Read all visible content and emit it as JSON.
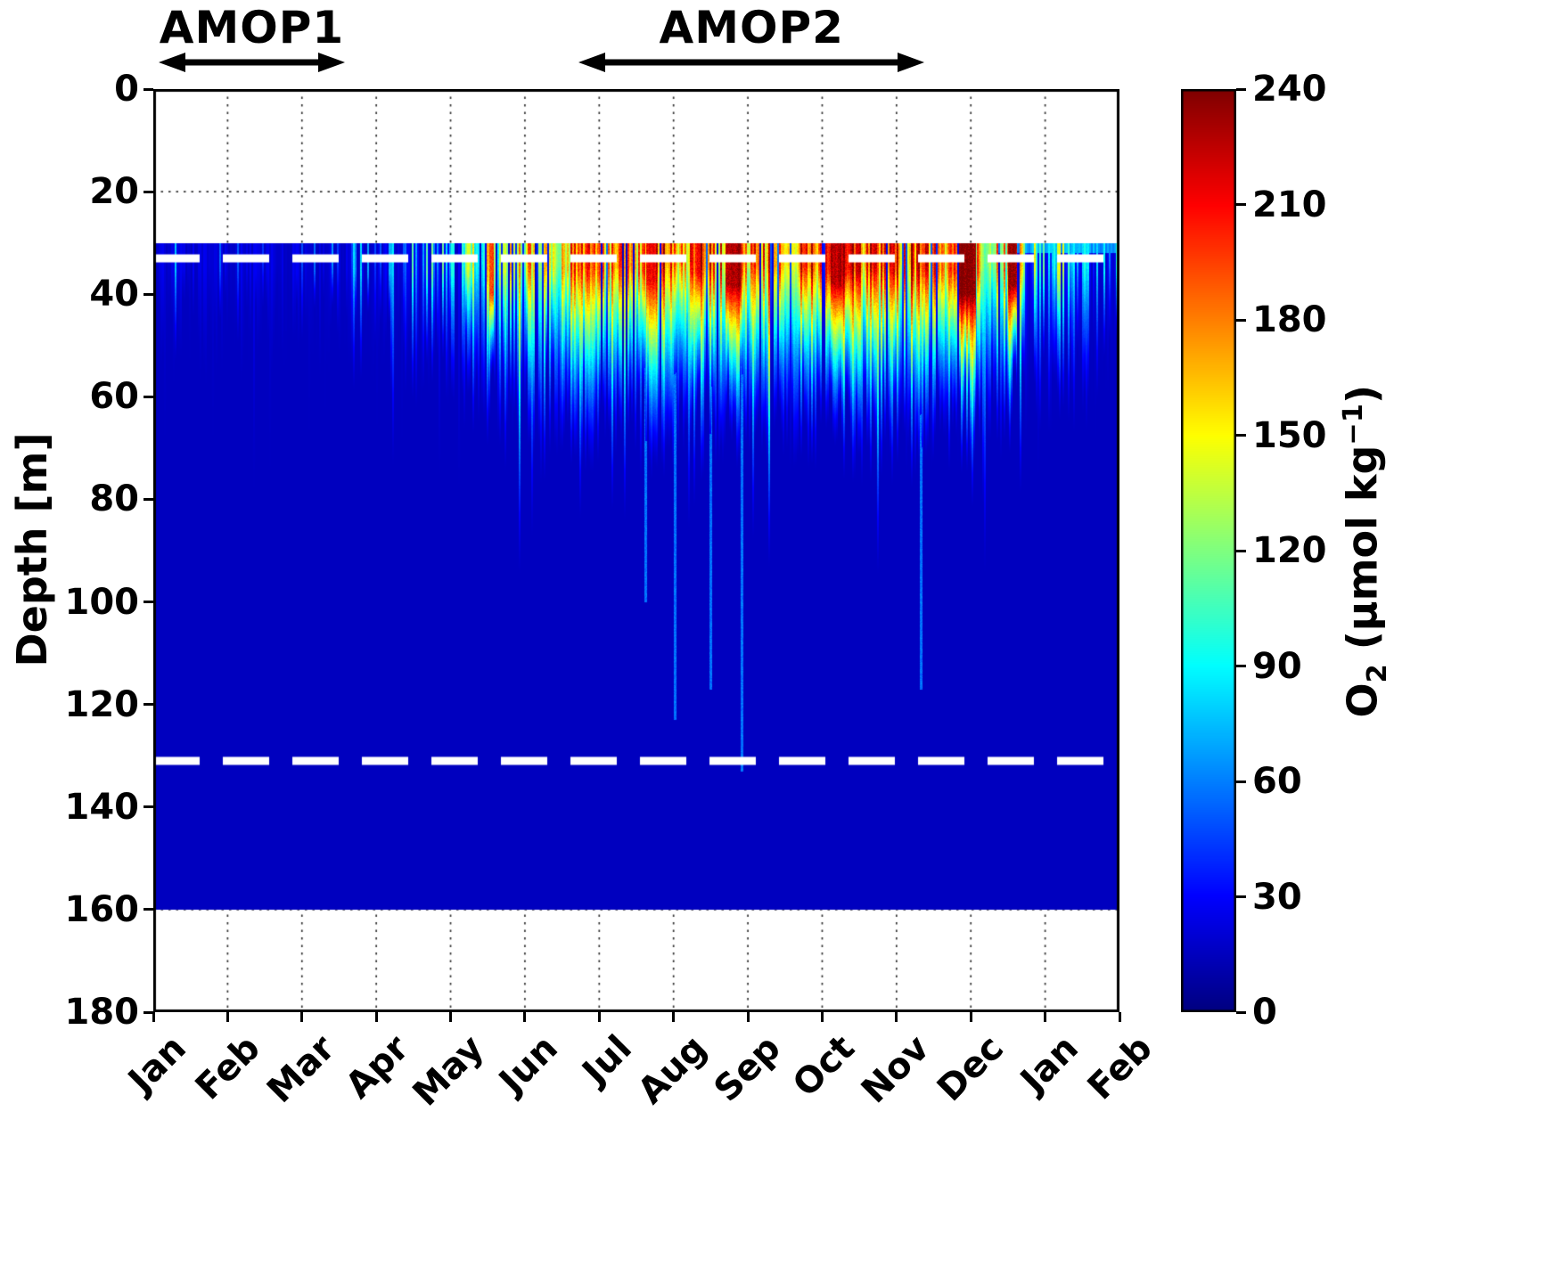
{
  "chart_data": {
    "type": "heatmap",
    "title": "",
    "x_axis": {
      "label": "",
      "tick_labels": [
        "Jan",
        "Feb",
        "Mar",
        "Apr",
        "May",
        "Jun",
        "Jul",
        "Aug",
        "Sep",
        "Oct",
        "Nov",
        "Dec",
        "Jan",
        "Feb"
      ]
    },
    "y_axis": {
      "label": "Depth [m]",
      "min": 0,
      "max": 180,
      "ticks": [
        0,
        20,
        40,
        60,
        80,
        100,
        120,
        140,
        160,
        180
      ]
    },
    "colorbar": {
      "min": 0,
      "max": 240,
      "ticks": [
        0,
        30,
        60,
        90,
        120,
        150,
        180,
        210,
        240
      ],
      "colormap": "jet",
      "label_text": "O2 (µmol kg−1)",
      "label_parts": {
        "pre": "O",
        "sub": "2",
        "mid": " (µmol kg",
        "sup": "−1",
        "post": ")"
      }
    },
    "campaigns": [
      {
        "name": "AMOP1",
        "start_month": 0.05,
        "end_month": 2.6
      },
      {
        "name": "AMOP2",
        "start_month": 5.7,
        "end_month": 10.4
      }
    ],
    "data_region": {
      "top_depth_m": 30,
      "bottom_depth_m": 160
    },
    "reference_lines": {
      "depths_m": [
        33,
        131
      ],
      "style": "white-dashed"
    },
    "field_model": {
      "background_o2": 15,
      "streak_fraction": [
        0.15,
        0.1,
        0.09,
        0.2,
        0.5,
        0.85,
        0.9,
        0.92,
        0.9,
        0.92,
        0.93,
        0.88,
        0.6,
        0.35
      ],
      "surface_o2_typical": [
        55,
        55,
        52,
        60,
        80,
        135,
        165,
        180,
        175,
        185,
        190,
        155,
        95,
        70
      ],
      "surface_o2_max": [
        85,
        75,
        70,
        90,
        140,
        205,
        228,
        242,
        238,
        240,
        245,
        238,
        165,
        115
      ],
      "penetration_depth_m": [
        50,
        50,
        48,
        53,
        58,
        64,
        67,
        69,
        67,
        68,
        70,
        66,
        61,
        56
      ],
      "hotspots": [
        {
          "month_pos": 4.55,
          "width": 0.06,
          "o2": 200,
          "depth_m": 52
        },
        {
          "month_pos": 6.7,
          "width": 0.15,
          "o2": 225,
          "depth_m": 46
        },
        {
          "month_pos": 7.8,
          "width": 0.22,
          "o2": 238,
          "depth_m": 48
        },
        {
          "month_pos": 9.2,
          "width": 0.18,
          "o2": 236,
          "depth_m": 47
        },
        {
          "month_pos": 10.95,
          "width": 0.22,
          "o2": 248,
          "depth_m": 52
        },
        {
          "month_pos": 11.55,
          "width": 0.12,
          "o2": 240,
          "depth_m": 48
        }
      ],
      "deep_spikes": [
        {
          "month_pos": 6.62,
          "depth_m": 100
        },
        {
          "month_pos": 7.02,
          "depth_m": 123
        },
        {
          "month_pos": 7.5,
          "depth_m": 117
        },
        {
          "month_pos": 7.92,
          "depth_m": 133
        },
        {
          "month_pos": 10.32,
          "depth_m": 117
        }
      ],
      "spike_o2": 55
    }
  }
}
